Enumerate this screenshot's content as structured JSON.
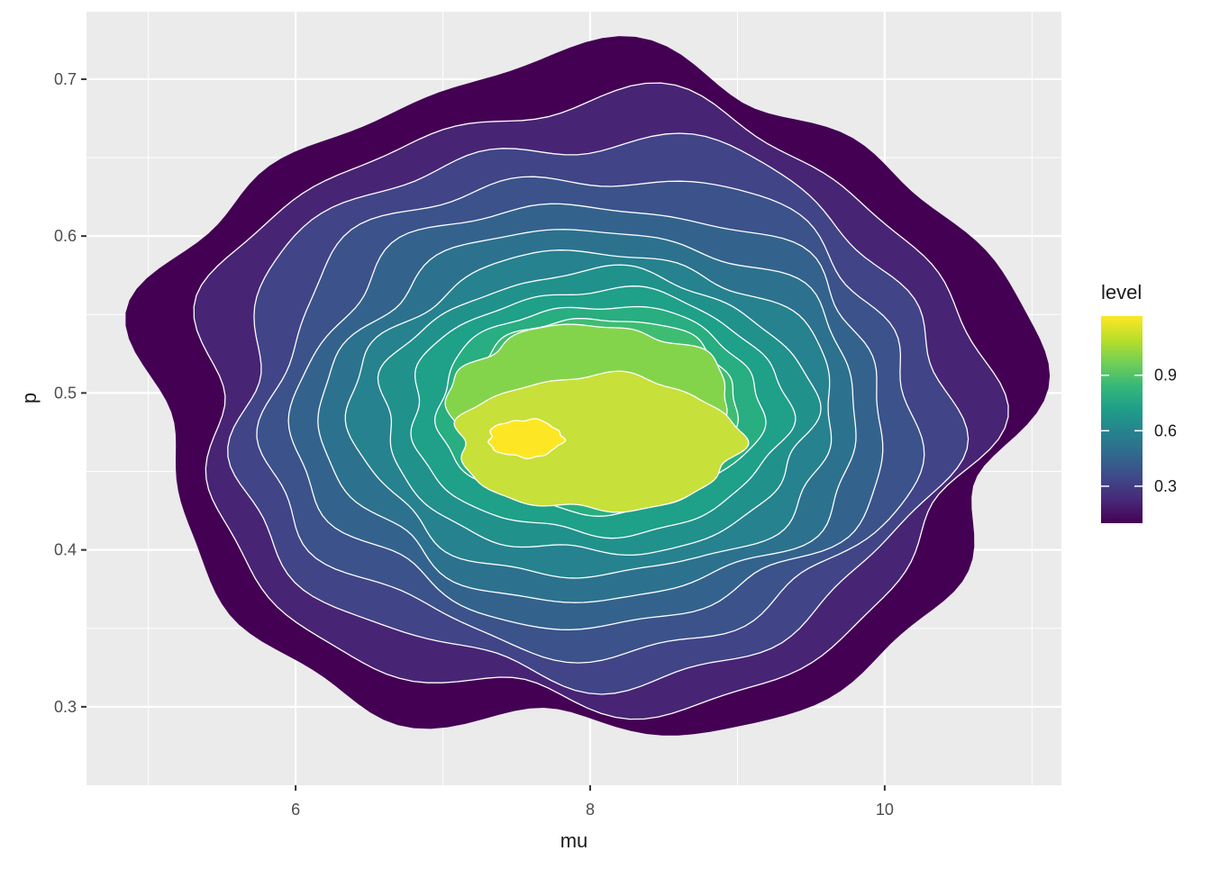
{
  "chart_data": {
    "type": "heatmap",
    "subtype": "filled-density-contour",
    "xlabel": "mu",
    "ylabel": "p",
    "xlim": [
      4.58,
      11.2
    ],
    "ylim": [
      0.25,
      0.743
    ],
    "x_ticks": [
      6,
      8,
      10
    ],
    "x_tick_labels": [
      "6",
      "8",
      "10"
    ],
    "x_minor_ticks": [
      5,
      7,
      9,
      11
    ],
    "y_ticks": [
      0.3,
      0.4,
      0.5,
      0.6,
      0.7
    ],
    "y_tick_labels": [
      "0.3",
      "0.4",
      "0.5",
      "0.6",
      "0.7"
    ],
    "y_minor_ticks": [
      0.35,
      0.45,
      0.55,
      0.65
    ],
    "grid": true,
    "panel_background": "#ebebeb",
    "grid_color": "#ffffff",
    "contour_line_color": "#ffffff",
    "legend": {
      "title": "level",
      "position": "right",
      "range": [
        0.1,
        1.22
      ],
      "ticks": [
        0.3,
        0.6,
        0.9
      ],
      "tick_labels": [
        "0.3",
        "0.6",
        "0.9"
      ],
      "palette": [
        "#440154",
        "#482878",
        "#3e4989",
        "#31688e",
        "#26828e",
        "#1f9e89",
        "#35b779",
        "#6ece58",
        "#b5de2b",
        "#fde725"
      ]
    },
    "bands": [
      {
        "level": 0.08,
        "color": "#440154",
        "cx": 7.97,
        "cy": 0.495,
        "rx": 2.98,
        "ry": 0.215,
        "wob": 0.045,
        "phase": 0.3
      },
      {
        "level": 0.16,
        "color": "#482475",
        "cx": 7.98,
        "cy": 0.492,
        "rx": 2.66,
        "ry": 0.193,
        "wob": 0.042,
        "phase": 1.1
      },
      {
        "level": 0.24,
        "color": "#414487",
        "cx": 7.99,
        "cy": 0.49,
        "rx": 2.42,
        "ry": 0.172,
        "wob": 0.04,
        "phase": 2.0
      },
      {
        "level": 0.32,
        "color": "#3b528b",
        "cx": 8.0,
        "cy": 0.488,
        "rx": 2.2,
        "ry": 0.152,
        "wob": 0.038,
        "phase": 2.8
      },
      {
        "level": 0.4,
        "color": "#33638d",
        "cx": 8.01,
        "cy": 0.487,
        "rx": 2.0,
        "ry": 0.134,
        "wob": 0.036,
        "phase": 3.7
      },
      {
        "level": 0.48,
        "color": "#2c728e",
        "cx": 8.02,
        "cy": 0.486,
        "rx": 1.82,
        "ry": 0.118,
        "wob": 0.034,
        "phase": 4.5
      },
      {
        "level": 0.56,
        "color": "#26828e",
        "cx": 8.03,
        "cy": 0.486,
        "rx": 1.64,
        "ry": 0.103,
        "wob": 0.032,
        "phase": 5.3
      },
      {
        "level": 0.64,
        "color": "#21918c",
        "cx": 8.04,
        "cy": 0.487,
        "rx": 1.46,
        "ry": 0.09,
        "wob": 0.03,
        "phase": 0.6
      },
      {
        "level": 0.72,
        "color": "#1fa088",
        "cx": 8.05,
        "cy": 0.488,
        "rx": 1.28,
        "ry": 0.078,
        "wob": 0.028,
        "phase": 1.5
      },
      {
        "level": 0.8,
        "color": "#28ae80",
        "cx": 8.06,
        "cy": 0.49,
        "rx": 1.1,
        "ry": 0.066,
        "wob": 0.026,
        "phase": 2.4
      },
      {
        "level": 0.88,
        "color": "#3fbc73",
        "cx": 8.07,
        "cy": 0.493,
        "rx": 0.93,
        "ry": 0.055,
        "wob": 0.03,
        "phase": 3.2
      },
      {
        "level": 0.96,
        "color": "#5ec962",
        "cx": 8.05,
        "cy": 0.494,
        "rx": 0.76,
        "ry": 0.043,
        "wob": 0.035,
        "phase": 4.1
      },
      {
        "level": 1.04,
        "color": "#84d44b",
        "cx": 8.0,
        "cy": 0.495,
        "rx": 0.95,
        "ry": 0.048,
        "wob": 0.04,
        "phase": 5.0
      },
      {
        "level": 1.12,
        "color": "#c8e03a",
        "cx": 8.05,
        "cy": 0.468,
        "rx": 0.96,
        "ry": 0.043,
        "wob": 0.04,
        "phase": 0.9
      },
      {
        "level": 1.2,
        "color": "#fde725",
        "cx": 7.56,
        "cy": 0.471,
        "rx": 0.25,
        "ry": 0.012,
        "wob": 0.05,
        "phase": 1.8
      }
    ]
  }
}
